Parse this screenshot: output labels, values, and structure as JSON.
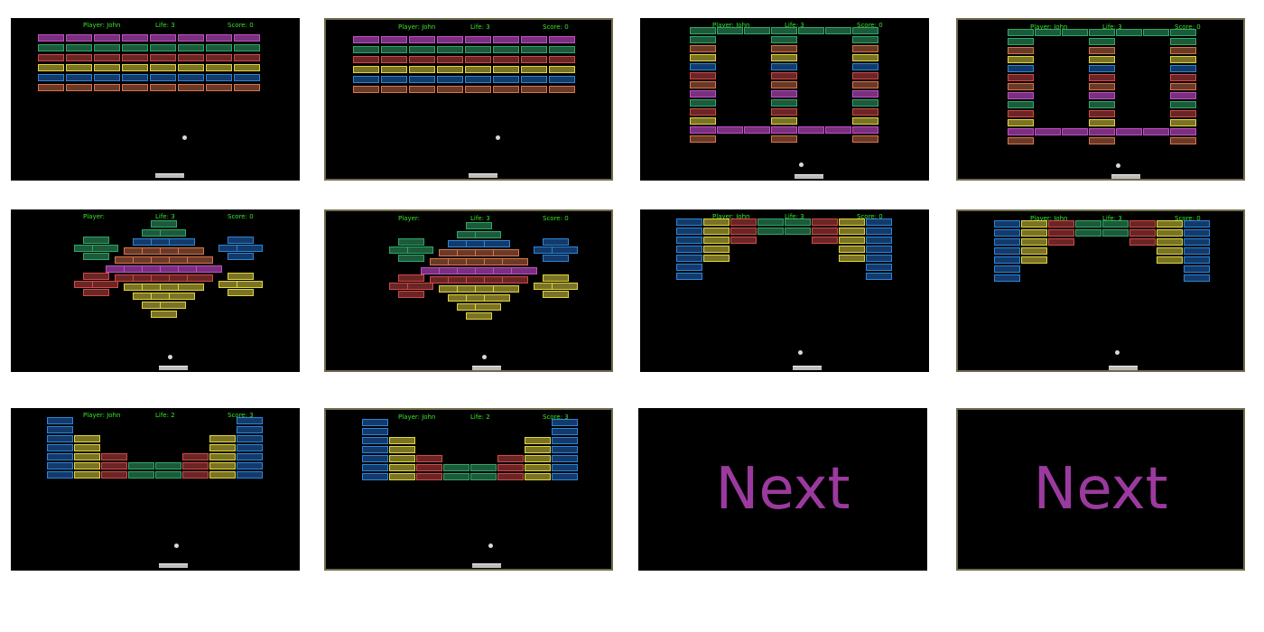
{
  "colors": {
    "hud_text": "#39e629",
    "ball": "#d8d8d8",
    "paddle": "#bdbdbd",
    "next_text": "#9b3a9e",
    "bricks": {
      "magenta": [
        "#c04fc6",
        "#7a2f7f"
      ],
      "green": [
        "#2ea86a",
        "#1d5a3a"
      ],
      "red": [
        "#d04a4a",
        "#6b2525"
      ],
      "yellow": [
        "#e0d53c",
        "#7a7326"
      ],
      "blue": [
        "#2b86d8",
        "#143a6b"
      ],
      "orange": [
        "#d8744a",
        "#6b3a27"
      ]
    }
  },
  "screens": [
    {
      "hud": {
        "player": "Player: John",
        "life": "Life: 3",
        "score": "Score: 0"
      },
      "level": "rows"
    },
    {
      "hud": {
        "player": "Player: John",
        "life": "Life: 3",
        "score": "Score: 0"
      },
      "level": "rows"
    },
    {
      "hud": {
        "player": "Player: John",
        "life": "Life: 3",
        "score": "Score: 0"
      },
      "level": "frame"
    },
    {
      "hud": {
        "player": "Player: John",
        "life": "Life: 3",
        "score": "Score: 0"
      },
      "level": "frame"
    },
    {
      "hud": {
        "player": "Player:",
        "life": "Life: 3",
        "score": "Score: 0"
      },
      "level": "diamond"
    },
    {
      "hud": {
        "player": "Player:",
        "life": "Life: 3",
        "score": "Score: 0"
      },
      "level": "diamond"
    },
    {
      "hud": {
        "player": "Player: John",
        "life": "Life: 3",
        "score": "Score: 0"
      },
      "level": "valley-top"
    },
    {
      "hud": {
        "player": "Player: John",
        "life": "Life: 3",
        "score": "Score: 0"
      },
      "level": "valley-top"
    },
    {
      "hud": {
        "player": "Player: John",
        "life": "Life: 2",
        "score": "Score: 3"
      },
      "level": "valley-bottom"
    },
    {
      "hud": {
        "player": "Player: John",
        "life": "Life: 2",
        "score": "Score: 3"
      },
      "level": "valley-bottom"
    },
    {
      "next_label": "Next"
    },
    {
      "next_label": "Next"
    }
  ]
}
